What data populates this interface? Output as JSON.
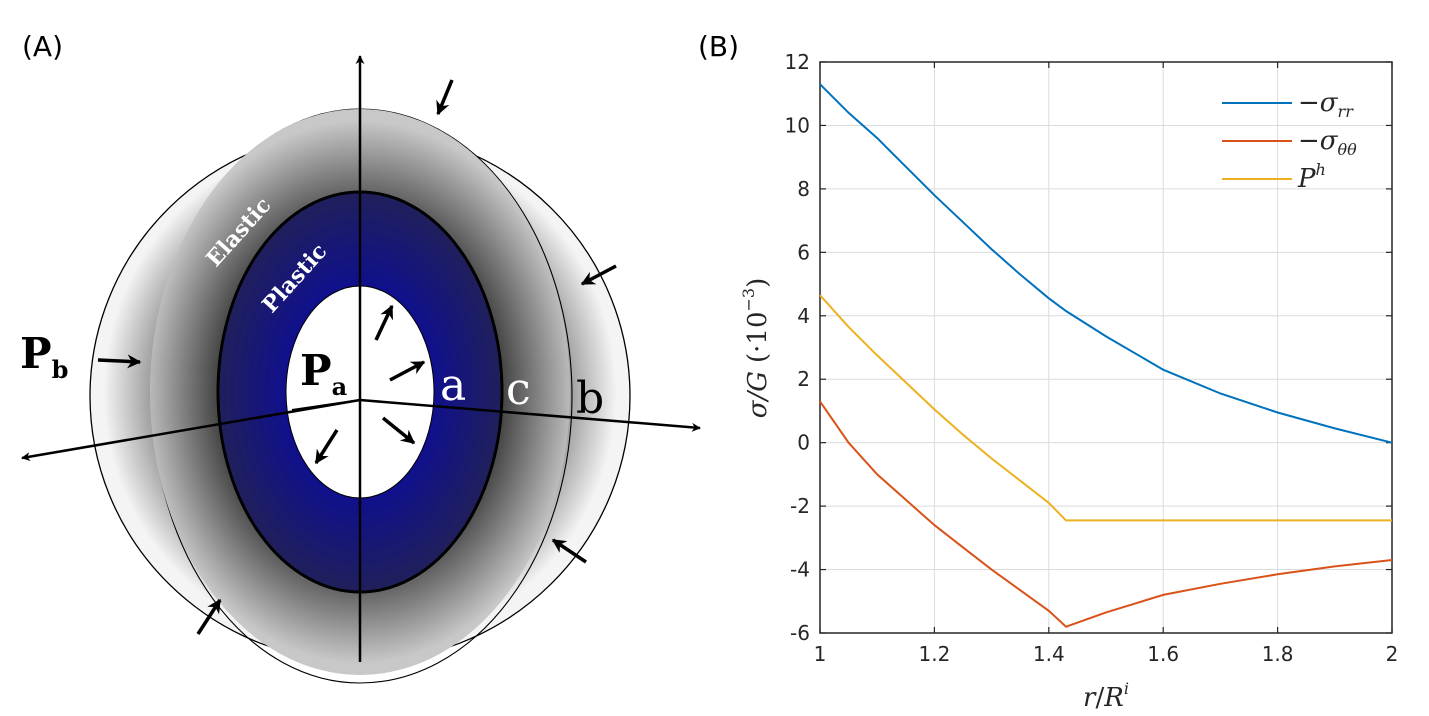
{
  "panelA": {
    "label": "(A)",
    "zone_elastic": "Elastic",
    "zone_plastic": "Plastic",
    "pressure_inner": "P",
    "pressure_inner_sub": "a",
    "pressure_outer": "P",
    "pressure_outer_sub": "b",
    "radius_a": "a",
    "radius_c": "c",
    "radius_b": "b",
    "colors": {
      "plastic": "#1a1a8c",
      "elastic": "#333333",
      "outer": "#f2f2f2"
    }
  },
  "panelB": {
    "label": "(B)",
    "xlabel_main": "r",
    "xlabel_sep": "/",
    "xlabel_R": "R",
    "xlabel_sup": "i",
    "ylabel_main": "σ/G",
    "ylabel_unit": "(·10",
    "ylabel_sup": "−3",
    "ylabel_close": ")",
    "chart_data": {
      "type": "line",
      "xlim": [
        1,
        2
      ],
      "ylim": [
        -6,
        12
      ],
      "grid": true,
      "legend_position": "top-right",
      "xticks": [
        1,
        1.2,
        1.4,
        1.6,
        1.8,
        2
      ],
      "xtick_labels": [
        "1",
        "1.2",
        "1.4",
        "1.6",
        "1.8",
        "2"
      ],
      "yticks": [
        -6,
        -4,
        -2,
        0,
        2,
        4,
        6,
        8,
        10,
        12
      ],
      "ytick_labels": [
        "-6",
        "-4",
        "-2",
        "0",
        "2",
        "4",
        "6",
        "8",
        "10",
        "12"
      ],
      "series": [
        {
          "name": "−σrr",
          "name_main": "−σ",
          "name_sub": "rr",
          "color": "#0072BD",
          "x": [
            1.0,
            1.05,
            1.1,
            1.15,
            1.2,
            1.25,
            1.3,
            1.35,
            1.4,
            1.43,
            1.5,
            1.6,
            1.7,
            1.8,
            1.9,
            2.0
          ],
          "y": [
            11.3,
            10.4,
            9.6,
            8.7,
            7.8,
            6.95,
            6.1,
            5.3,
            4.55,
            4.15,
            3.35,
            2.3,
            1.55,
            0.95,
            0.45,
            0.0
          ]
        },
        {
          "name": "−σθθ",
          "name_main": "−σ",
          "name_sub": "θθ",
          "color": "#D95319",
          "x": [
            1.0,
            1.05,
            1.1,
            1.15,
            1.2,
            1.25,
            1.3,
            1.35,
            1.4,
            1.43,
            1.5,
            1.6,
            1.7,
            1.8,
            1.9,
            2.0
          ],
          "y": [
            1.3,
            0.0,
            -1.0,
            -1.8,
            -2.6,
            -3.3,
            -4.0,
            -4.65,
            -5.3,
            -5.8,
            -5.35,
            -4.8,
            -4.45,
            -4.15,
            -3.9,
            -3.7
          ]
        },
        {
          "name": "Ph",
          "name_main": "P",
          "name_sub": "h",
          "color": "#EDB120",
          "x": [
            1.0,
            1.05,
            1.1,
            1.15,
            1.2,
            1.25,
            1.3,
            1.35,
            1.4,
            1.43,
            1.5,
            1.6,
            1.7,
            1.8,
            1.9,
            2.0
          ],
          "y": [
            4.65,
            3.65,
            2.75,
            1.9,
            1.05,
            0.25,
            -0.5,
            -1.2,
            -1.9,
            -2.45,
            -2.45,
            -2.45,
            -2.45,
            -2.45,
            -2.45,
            -2.45
          ]
        }
      ]
    }
  }
}
